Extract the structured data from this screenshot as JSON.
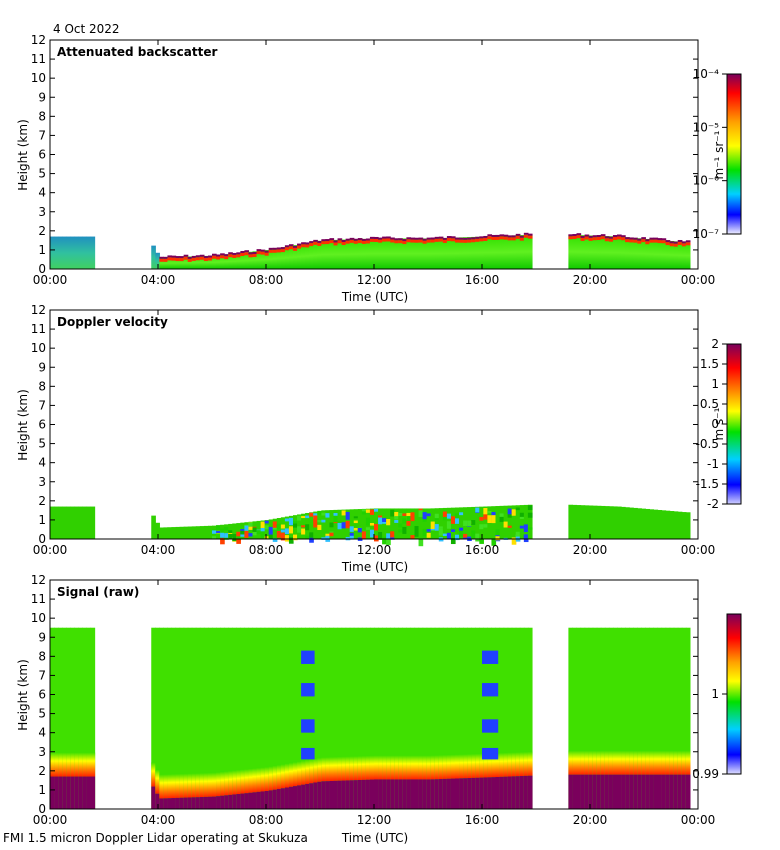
{
  "figure": {
    "date_label": "4 Oct 2022",
    "footer": "FMI 1.5 micron Doppler Lidar operating at Skukuza"
  },
  "chart_data": [
    {
      "type": "heatmap",
      "title": "Attenuated backscatter",
      "xlabel": "Time (UTC)",
      "ylabel": "Height (km)",
      "xlim": [
        0,
        24
      ],
      "ylim": [
        0,
        12
      ],
      "x_ticks": [
        "00:00",
        "04:00",
        "08:00",
        "12:00",
        "16:00",
        "20:00",
        "00:00"
      ],
      "y_ticks": [
        "0",
        "1",
        "2",
        "3",
        "4",
        "5",
        "6",
        "7",
        "8",
        "9",
        "10",
        "11",
        "12"
      ],
      "data_gaps_hours": [
        [
          1.5,
          3.6
        ],
        [
          17.8,
          19.1
        ]
      ],
      "cloud_top_km": [
        {
          "t": 0.0,
          "h": 1.7
        },
        {
          "t": 1.5,
          "h": 1.7
        },
        {
          "t": 3.6,
          "h": 1.6
        },
        {
          "t": 4.0,
          "h": 0.6
        },
        {
          "t": 6.0,
          "h": 0.7
        },
        {
          "t": 8.0,
          "h": 1.0
        },
        {
          "t": 10.0,
          "h": 1.5
        },
        {
          "t": 12.0,
          "h": 1.6
        },
        {
          "t": 14.0,
          "h": 1.6
        },
        {
          "t": 16.0,
          "h": 1.7
        },
        {
          "t": 17.8,
          "h": 1.8
        },
        {
          "t": 19.1,
          "h": 1.8
        },
        {
          "t": 21.0,
          "h": 1.7
        },
        {
          "t": 23.5,
          "h": 1.4
        }
      ],
      "colorbar": {
        "label": "m⁻¹ sr⁻¹",
        "ticks": [
          "10⁻⁴",
          "10⁻⁵",
          "10⁻⁶",
          "10⁻⁷"
        ],
        "range": [
          1e-07,
          0.0001
        ],
        "scale": "log"
      }
    },
    {
      "type": "heatmap",
      "title": "Doppler velocity",
      "xlabel": "Time (UTC)",
      "ylabel": "Height (km)",
      "xlim": [
        0,
        24
      ],
      "ylim": [
        0,
        12
      ],
      "x_ticks": [
        "00:00",
        "04:00",
        "08:00",
        "12:00",
        "16:00",
        "20:00",
        "00:00"
      ],
      "y_ticks": [
        "0",
        "1",
        "2",
        "3",
        "4",
        "5",
        "6",
        "7",
        "8",
        "9",
        "10",
        "11",
        "12"
      ],
      "data_gaps_hours": [
        [
          1.5,
          3.6
        ],
        [
          17.8,
          19.1
        ]
      ],
      "colorbar": {
        "label": "m s⁻¹",
        "ticks": [
          "2",
          "1.5",
          "1",
          "0.5",
          "0",
          "-0.5",
          "-1",
          "-1.5",
          "-2"
        ],
        "range": [
          -2,
          2
        ],
        "scale": "linear"
      }
    },
    {
      "type": "heatmap",
      "title": "Signal (raw)",
      "xlabel": "Time (UTC)",
      "ylabel": "Height (km)",
      "xlim": [
        0,
        24
      ],
      "ylim": [
        0,
        12
      ],
      "x_ticks": [
        "00:00",
        "04:00",
        "08:00",
        "12:00",
        "16:00",
        "20:00",
        "00:00"
      ],
      "y_ticks": [
        "0",
        "1",
        "2",
        "3",
        "4",
        "5",
        "6",
        "7",
        "8",
        "9",
        "10",
        "11",
        "12"
      ],
      "data_gaps_hours": [
        [
          1.5,
          3.6
        ],
        [
          17.8,
          19.1
        ]
      ],
      "data_top_km": 9.5,
      "colorbar": {
        "label": "",
        "ticks": [
          "1",
          "0.99"
        ],
        "range": [
          0.99,
          1.01
        ],
        "scale": "linear"
      }
    }
  ]
}
